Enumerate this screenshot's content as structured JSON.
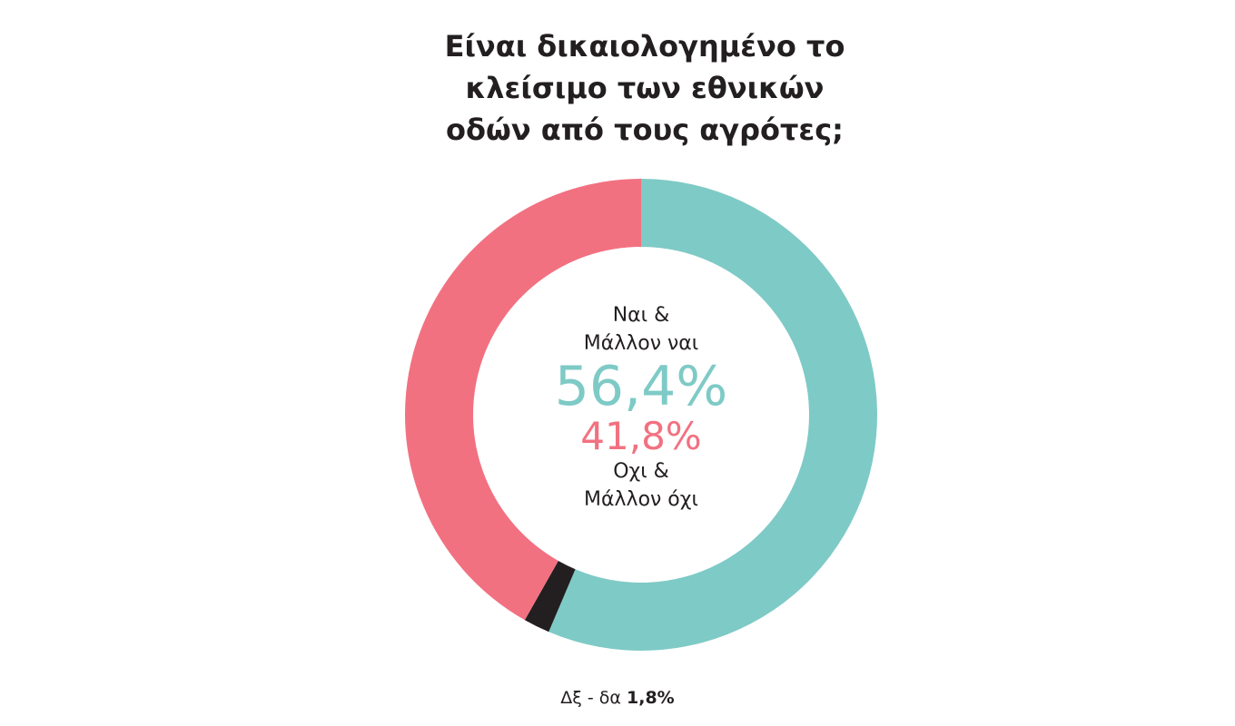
{
  "chart_data": {
    "type": "pie",
    "donut": true,
    "title": "Είναι δικαιολογημένο το κλείσιμο των εθνικών οδών από τους αγρότες;",
    "categories": [
      "Ναι & Μάλλον ναι",
      "Δξ - δα",
      "Οχι & Μάλλον όχι"
    ],
    "values": [
      56.4,
      1.8,
      41.8
    ],
    "value_labels": [
      "56,4%",
      "1,8%",
      "41,8%"
    ],
    "colors": [
      "#7ecac6",
      "#231f20",
      "#f27181"
    ]
  }
}
